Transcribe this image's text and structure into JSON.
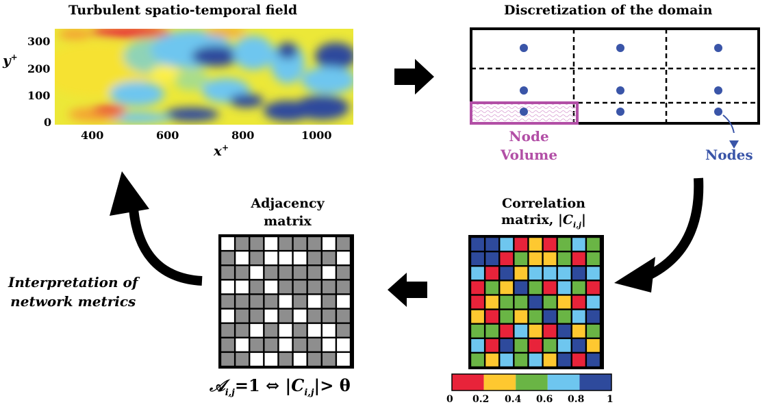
{
  "panel_field": {
    "title": "Turbulent spatio-temporal field",
    "x_axis_label": "x",
    "x_axis_sup": "+",
    "y_axis_label": "y",
    "y_axis_sup": "+",
    "x_ticks": [
      "400",
      "600",
      "800",
      "1000"
    ],
    "y_ticks": [
      "300",
      "200",
      "100",
      "0"
    ]
  },
  "panel_domain": {
    "title": "Discretization of the domain",
    "node_volume_label_line1": "Node",
    "node_volume_label_line2": "Volume",
    "nodes_label": "Nodes"
  },
  "panel_correlation": {
    "title_line1": "Correlation",
    "title_line2_prefix": "matrix, |",
    "title_line2_var": "C",
    "title_line2_sub": "i,j",
    "title_line2_suffix": "|",
    "colorbar_ticks": [
      "0",
      "0.2",
      "0.4",
      "0.6",
      "0.8",
      "1"
    ]
  },
  "panel_adjacency": {
    "title_line1": "Adjacency",
    "title_line2": "matrix",
    "formula_lhs": "𝒜",
    "formula_sub": "i,j",
    "formula_eq": "=1 ⇔ |",
    "formula_var": "C",
    "formula_sub2": "i,j",
    "formula_rhs": "|> θ"
  },
  "panel_interpretation": {
    "line1": "Interpretation of",
    "line2": "network metrics"
  },
  "colors": {
    "red": "#e8233a",
    "yellow": "#fec830",
    "green": "#6ab545",
    "lightblue": "#6ec6ef",
    "darkblue": "#2e4a9c",
    "magenta": "#b24fa6",
    "node_blue": "#3a55a8",
    "adj_gray": "#8e8e8e"
  },
  "correlation_matrix": [
    [
      "darkblue",
      "darkblue",
      "lightblue",
      "red",
      "yellow",
      "red",
      "green",
      "lightblue",
      "green"
    ],
    [
      "darkblue",
      "darkblue",
      "red",
      "green",
      "yellow",
      "yellow",
      "green",
      "red",
      "green"
    ],
    [
      "lightblue",
      "red",
      "darkblue",
      "yellow",
      "lightblue",
      "lightblue",
      "lightblue",
      "darkblue",
      "lightblue"
    ],
    [
      "red",
      "green",
      "yellow",
      "darkblue",
      "green",
      "red",
      "lightblue",
      "green",
      "red"
    ],
    [
      "red",
      "yellow",
      "green",
      "green",
      "darkblue",
      "green",
      "yellow",
      "red",
      "lightblue"
    ],
    [
      "yellow",
      "red",
      "green",
      "yellow",
      "green",
      "darkblue",
      "green",
      "lightblue",
      "darkblue"
    ],
    [
      "green",
      "green",
      "red",
      "lightblue",
      "yellow",
      "red",
      "darkblue",
      "yellow",
      "green"
    ],
    [
      "lightblue",
      "red",
      "darkblue",
      "green",
      "red",
      "green",
      "lightblue",
      "darkblue",
      "yellow"
    ],
    [
      "green",
      "yellow",
      "lightblue",
      "green",
      "lightblue",
      "yellow",
      "darkblue",
      "red",
      "darkblue"
    ]
  ],
  "adjacency_matrix": [
    [
      1,
      0,
      0,
      1,
      0,
      0,
      0,
      1,
      0
    ],
    [
      0,
      1,
      0,
      1,
      1,
      1,
      0,
      0,
      1
    ],
    [
      0,
      0,
      1,
      0,
      0,
      0,
      0,
      1,
      0
    ],
    [
      1,
      1,
      0,
      1,
      0,
      0,
      0,
      0,
      0
    ],
    [
      0,
      0,
      0,
      0,
      1,
      0,
      1,
      0,
      1
    ],
    [
      1,
      0,
      0,
      1,
      0,
      1,
      0,
      0,
      0
    ],
    [
      0,
      0,
      1,
      0,
      1,
      0,
      1,
      1,
      0
    ],
    [
      0,
      1,
      0,
      0,
      1,
      0,
      0,
      1,
      1
    ],
    [
      0,
      0,
      1,
      1,
      0,
      1,
      0,
      0,
      1
    ]
  ]
}
